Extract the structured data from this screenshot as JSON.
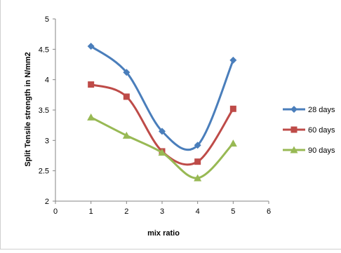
{
  "chart_data": {
    "type": "line",
    "title": "",
    "xlabel": "mix ratio",
    "ylabel": "Split Tensile strength in N/mm2",
    "xlim": [
      0,
      6
    ],
    "ylim": [
      2,
      5
    ],
    "x_ticks": [
      "0",
      "1",
      "2",
      "3",
      "4",
      "5",
      "6"
    ],
    "y_ticks": [
      "2",
      "2.5",
      "3",
      "3.5",
      "4",
      "4.5",
      "5"
    ],
    "grid": false,
    "legend_position": "right",
    "smooth": true,
    "x": [
      1,
      2,
      3,
      4,
      5
    ],
    "series": [
      {
        "name": "28 days",
        "values": [
          4.55,
          4.12,
          3.15,
          2.92,
          4.32
        ],
        "color": "#4A7EBB",
        "marker": "diamond"
      },
      {
        "name": "60 days",
        "values": [
          3.92,
          3.72,
          2.82,
          2.65,
          3.52
        ],
        "color": "#BE4B48",
        "marker": "square"
      },
      {
        "name": "90 days",
        "values": [
          3.38,
          3.08,
          2.8,
          2.38,
          2.95
        ],
        "color": "#98B954",
        "marker": "triangle"
      }
    ]
  }
}
